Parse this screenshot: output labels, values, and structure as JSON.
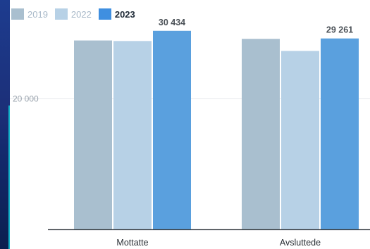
{
  "chart_data": {
    "type": "bar",
    "categories": [
      "Mottatte",
      "Avsluttede"
    ],
    "series": [
      {
        "name": "2019",
        "color": "#a9bfcf",
        "values": [
          28950,
          29200
        ]
      },
      {
        "name": "2022",
        "color": "#b7d1e6",
        "values": [
          28870,
          27350
        ]
      },
      {
        "name": "2023",
        "color": "#5aa0de",
        "values": [
          30434,
          29261
        ]
      }
    ],
    "data_labels": [
      {
        "series": "2023",
        "category": "Mottatte",
        "text": "30 434"
      },
      {
        "series": "2023",
        "category": "Avsluttede",
        "text": "29 261"
      }
    ],
    "y_ticks": [
      {
        "value": 20000,
        "label": "20 000"
      }
    ],
    "ylim": [
      0,
      33000
    ],
    "title": "",
    "xlabel": "",
    "ylabel": "",
    "legend_position": "top-left",
    "grid": true
  }
}
